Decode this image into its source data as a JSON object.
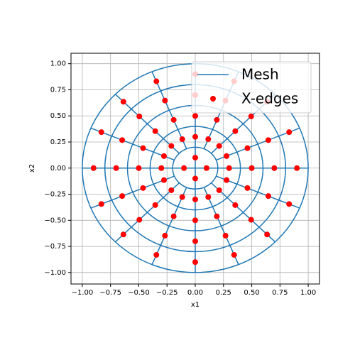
{
  "chart_data": {
    "type": "scatter",
    "xlabel": "x1",
    "ylabel": "x2",
    "xlim": [
      -1.1,
      1.1
    ],
    "ylim": [
      -1.11,
      1.1
    ],
    "grid": true,
    "legend": "upper right",
    "xticks": [
      {
        "value": -1,
        "label": "−1.00"
      },
      {
        "value": -0.75,
        "label": "−0.75"
      },
      {
        "value": -0.5,
        "label": "−0.50"
      },
      {
        "value": -0.25,
        "label": "−0.25"
      },
      {
        "value": 0,
        "label": "0.00"
      },
      {
        "value": 0.25,
        "label": "0.25"
      },
      {
        "value": 0.5,
        "label": "0.50"
      },
      {
        "value": 0.75,
        "label": "0.75"
      },
      {
        "value": 1,
        "label": "1.00"
      }
    ],
    "yticks": [
      {
        "value": -1,
        "label": "−1.00"
      },
      {
        "value": -0.75,
        "label": "−0.75"
      },
      {
        "value": -0.5,
        "label": "−0.50"
      },
      {
        "value": -0.25,
        "label": "−0.25"
      },
      {
        "value": 0,
        "label": "0.00"
      },
      {
        "value": 0.25,
        "label": "0.25"
      },
      {
        "value": 0.5,
        "label": "0.50"
      },
      {
        "value": 0.75,
        "label": "0.75"
      },
      {
        "value": 1,
        "label": "1.00"
      }
    ],
    "mesh": {
      "name": "Mesh",
      "color": "#1f77b4",
      "circles": [
        0.2,
        0.4,
        0.6,
        0.8,
        1.0
      ],
      "segments": [
        [
          0.2,
          0,
          1,
          0
        ],
        [
          0.185,
          0.077,
          0.924,
          0.383
        ],
        [
          0.141,
          0.141,
          0.707,
          0.707
        ],
        [
          0.077,
          0.185,
          0.383,
          0.924
        ],
        [
          0,
          0.2,
          0,
          1
        ],
        [
          -0.077,
          0.185,
          -0.383,
          0.924
        ],
        [
          -0.141,
          0.141,
          -0.707,
          0.707
        ],
        [
          -0.185,
          0.077,
          -0.924,
          0.383
        ],
        [
          -0.2,
          0,
          -1,
          0
        ],
        [
          -0.185,
          -0.077,
          -0.924,
          -0.383
        ],
        [
          -0.141,
          -0.141,
          -0.707,
          -0.707
        ],
        [
          -0.077,
          -0.185,
          -0.383,
          -0.924
        ],
        [
          0,
          -0.2,
          0,
          -1
        ],
        [
          0.077,
          -0.185,
          0.383,
          -0.924
        ],
        [
          0.141,
          -0.141,
          0.707,
          -0.707
        ],
        [
          0.185,
          -0.077,
          0.924,
          -0.383
        ],
        [
          -0.2,
          0,
          0.2,
          0
        ],
        [
          0,
          -0.2,
          0,
          0.2
        ]
      ]
    },
    "series": [
      {
        "name": "X-edges",
        "color": "#ff0000",
        "x": [
          0.3,
          0.277,
          0.212,
          0.115,
          0,
          -0.115,
          -0.212,
          -0.277,
          -0.3,
          -0.277,
          -0.212,
          -0.115,
          0,
          0.115,
          0.212,
          0.277,
          0.5,
          0.462,
          0.354,
          0.191,
          0,
          -0.191,
          -0.354,
          -0.462,
          -0.5,
          -0.462,
          -0.354,
          -0.191,
          0,
          0.191,
          0.354,
          0.462,
          0.7,
          0.647,
          0.495,
          0.268,
          0,
          -0.268,
          -0.495,
          -0.647,
          -0.7,
          -0.647,
          -0.495,
          -0.268,
          0,
          0.268,
          0.495,
          0.647,
          0.9,
          0.831,
          0.636,
          0.344,
          0,
          -0.344,
          -0.636,
          -0.831,
          -0.9,
          -0.831,
          -0.636,
          -0.344,
          0,
          0.344,
          0.636,
          0.831,
          0.1,
          0,
          -0.1,
          0
        ],
        "y": [
          0,
          0.115,
          0.212,
          0.277,
          0.3,
          0.277,
          0.212,
          0.115,
          0,
          -0.115,
          -0.212,
          -0.277,
          -0.3,
          -0.277,
          -0.212,
          -0.115,
          0,
          0.191,
          0.354,
          0.462,
          0.5,
          0.462,
          0.354,
          0.191,
          0,
          -0.191,
          -0.354,
          -0.462,
          -0.5,
          -0.462,
          -0.354,
          -0.191,
          0,
          0.268,
          0.495,
          0.647,
          0.7,
          0.647,
          0.495,
          0.268,
          0,
          -0.268,
          -0.495,
          -0.647,
          -0.7,
          -0.647,
          -0.495,
          -0.268,
          0,
          0.344,
          0.636,
          0.831,
          0.9,
          0.831,
          0.636,
          0.344,
          0,
          -0.344,
          -0.636,
          -0.831,
          -0.9,
          -0.831,
          -0.636,
          -0.344,
          0,
          0.1,
          0,
          -0.1
        ]
      }
    ]
  }
}
